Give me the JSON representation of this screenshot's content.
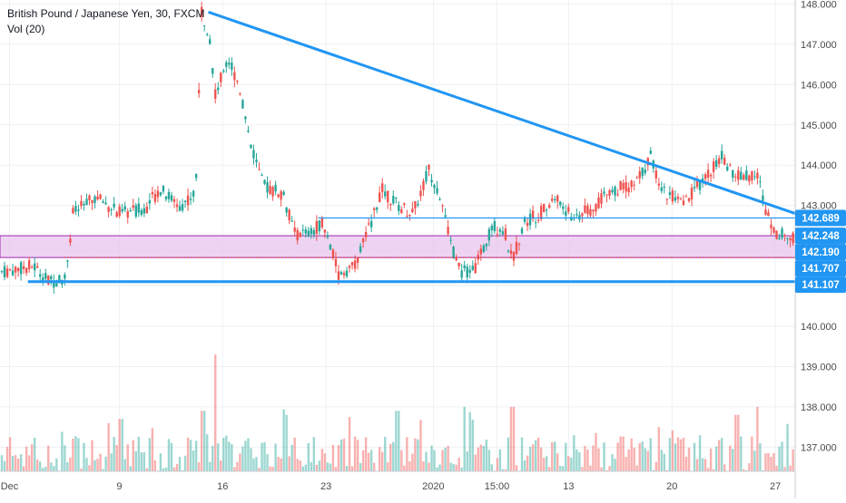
{
  "legend": {
    "title": "British Pound / Japanese Yen, 30, FXCM",
    "volume": "Vol (20)"
  },
  "colors": {
    "up": "#26a69a",
    "down": "#ef5350",
    "trendline": "#2196f3",
    "zone_fill": "#e8c6ee",
    "zone_border": "#9c27b0",
    "dotted_line": "#e53935",
    "axis_text": "#4a4a4a",
    "grid": "#eef0f3"
  },
  "chart_data": {
    "type": "candlestick",
    "symbol": "British Pound / Japanese Yen, 30, FXCM",
    "indicator": "Vol (20)",
    "ylim": [
      136.4,
      148.1
    ],
    "y_ticks": [
      "148.000",
      "147.000",
      "146.000",
      "145.000",
      "144.000",
      "143.000",
      "142.000",
      "141.000",
      "140.000",
      "139.000",
      "138.000",
      "137.000"
    ],
    "x_ticks": [
      "Dec",
      "9",
      "16",
      "23",
      "2020",
      "15:00",
      "13",
      "20",
      "27"
    ],
    "price_labels": [
      {
        "text": "142.689",
        "value": 142.689,
        "color": "#2196f3"
      },
      {
        "text": "142.248",
        "value": 142.248,
        "color": "#2196f3"
      },
      {
        "text": "142.190",
        "value": 142.19,
        "color": "#2196f3"
      },
      {
        "text": "141.707",
        "value": 141.707,
        "color": "#2196f3"
      },
      {
        "text": "141.107",
        "value": 141.107,
        "color": "#2196f3"
      }
    ],
    "horizontal_levels": [
      {
        "value": 141.107,
        "style": "solid-thick",
        "color": "#2196f3"
      },
      {
        "value": 142.689,
        "style": "solid-thin",
        "color": "#2196f3"
      },
      {
        "value": 141.707,
        "style": "dotted",
        "color": "#e53935"
      }
    ],
    "zone": {
      "top": 142.248,
      "bottom": 141.707
    },
    "trendline": {
      "from": {
        "x": "16",
        "price": 147.8
      },
      "to": {
        "x": "27",
        "price": 142.8
      }
    },
    "price_path": [
      {
        "x": 0.0,
        "y": 141.35
      },
      {
        "x": 0.04,
        "y": 141.5
      },
      {
        "x": 0.06,
        "y": 141.1
      },
      {
        "x": 0.08,
        "y": 141.2
      },
      {
        "x": 0.09,
        "y": 142.8
      },
      {
        "x": 0.12,
        "y": 143.2
      },
      {
        "x": 0.15,
        "y": 142.8
      },
      {
        "x": 0.18,
        "y": 142.9
      },
      {
        "x": 0.2,
        "y": 143.4
      },
      {
        "x": 0.225,
        "y": 143.0
      },
      {
        "x": 0.245,
        "y": 143.3
      },
      {
        "x": 0.252,
        "y": 147.8
      },
      {
        "x": 0.262,
        "y": 147.3
      },
      {
        "x": 0.27,
        "y": 145.7
      },
      {
        "x": 0.285,
        "y": 146.7
      },
      {
        "x": 0.3,
        "y": 146.0
      },
      {
        "x": 0.315,
        "y": 144.5
      },
      {
        "x": 0.33,
        "y": 143.5
      },
      {
        "x": 0.355,
        "y": 143.3
      },
      {
        "x": 0.37,
        "y": 142.3
      },
      {
        "x": 0.39,
        "y": 142.3
      },
      {
        "x": 0.405,
        "y": 142.6
      },
      {
        "x": 0.415,
        "y": 142.0
      },
      {
        "x": 0.425,
        "y": 141.3
      },
      {
        "x": 0.445,
        "y": 141.5
      },
      {
        "x": 0.46,
        "y": 142.2
      },
      {
        "x": 0.48,
        "y": 143.4
      },
      {
        "x": 0.5,
        "y": 143.0
      },
      {
        "x": 0.52,
        "y": 142.8
      },
      {
        "x": 0.54,
        "y": 143.9
      },
      {
        "x": 0.555,
        "y": 143.2
      },
      {
        "x": 0.565,
        "y": 142.2
      },
      {
        "x": 0.58,
        "y": 141.3
      },
      {
        "x": 0.6,
        "y": 141.5
      },
      {
        "x": 0.62,
        "y": 142.5
      },
      {
        "x": 0.635,
        "y": 142.4
      },
      {
        "x": 0.645,
        "y": 141.6
      },
      {
        "x": 0.66,
        "y": 142.6
      },
      {
        "x": 0.68,
        "y": 142.8
      },
      {
        "x": 0.7,
        "y": 143.2
      },
      {
        "x": 0.72,
        "y": 142.7
      },
      {
        "x": 0.745,
        "y": 142.9
      },
      {
        "x": 0.77,
        "y": 143.4
      },
      {
        "x": 0.8,
        "y": 143.5
      },
      {
        "x": 0.82,
        "y": 144.2
      },
      {
        "x": 0.835,
        "y": 143.4
      },
      {
        "x": 0.86,
        "y": 143.0
      },
      {
        "x": 0.885,
        "y": 143.6
      },
      {
        "x": 0.91,
        "y": 144.2
      },
      {
        "x": 0.93,
        "y": 143.7
      },
      {
        "x": 0.955,
        "y": 143.8
      },
      {
        "x": 0.965,
        "y": 142.9
      },
      {
        "x": 0.98,
        "y": 142.3
      },
      {
        "x": 1.0,
        "y": 142.2
      }
    ],
    "volume_spikes": [
      {
        "x": 0.27,
        "y": 139.3
      },
      {
        "x": 0.255,
        "y": 137.9
      },
      {
        "x": 0.5,
        "y": 137.9
      },
      {
        "x": 0.585,
        "y": 138.0
      },
      {
        "x": 0.645,
        "y": 138.0
      },
      {
        "x": 0.36,
        "y": 137.8
      },
      {
        "x": 0.15,
        "y": 137.7
      },
      {
        "x": 0.93,
        "y": 137.8
      },
      {
        "x": 0.955,
        "y": 138.0
      }
    ]
  }
}
